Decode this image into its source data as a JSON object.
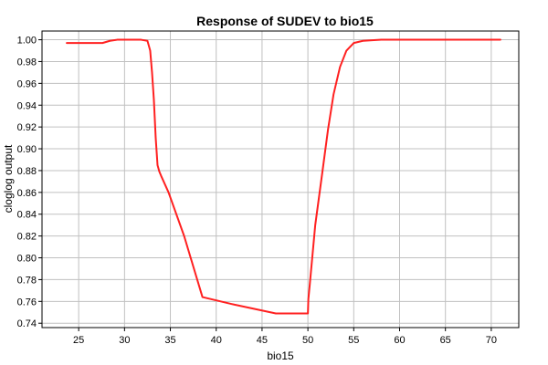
{
  "chart_data": {
    "type": "line",
    "title": "Response of SUDEV to bio15",
    "xlabel": "bio15",
    "ylabel": "cloglog output",
    "xlim": [
      21,
      73
    ],
    "ylim": [
      0.736,
      1.008
    ],
    "xticks": [
      25,
      30,
      35,
      40,
      45,
      50,
      55,
      60,
      65,
      70
    ],
    "yticks": [
      0.74,
      0.76,
      0.78,
      0.8,
      0.82,
      0.84,
      0.86,
      0.88,
      0.9,
      0.92,
      0.94,
      0.96,
      0.98,
      1.0
    ],
    "xtick_labels": [
      "25",
      "30",
      "35",
      "40",
      "45",
      "50",
      "55",
      "60",
      "65",
      "70"
    ],
    "ytick_labels": [
      "0.74",
      "0.76",
      "0.78",
      "0.80",
      "0.82",
      "0.84",
      "0.86",
      "0.88",
      "0.90",
      "0.92",
      "0.94",
      "0.96",
      "0.98",
      "1.00"
    ],
    "grid": true,
    "series": [
      {
        "color": "#ff2020",
        "x": [
          23.7,
          27.6,
          28.4,
          29.2,
          31.8,
          32.5,
          32.8,
          33.0,
          33.2,
          33.4,
          33.6,
          33.8,
          34.0,
          34.8,
          36.5,
          38.5,
          42.0,
          46.5,
          50.0,
          50.05,
          50.2,
          50.8,
          51.6,
          52.2,
          52.8,
          53.5,
          54.2,
          55.0,
          56.0,
          58.0,
          71.0
        ],
        "y": [
          0.997,
          0.997,
          0.999,
          1.0,
          1.0,
          0.999,
          0.99,
          0.97,
          0.945,
          0.91,
          0.885,
          0.879,
          0.875,
          0.86,
          0.82,
          0.764,
          0.757,
          0.749,
          0.749,
          0.762,
          0.775,
          0.83,
          0.88,
          0.918,
          0.95,
          0.975,
          0.99,
          0.997,
          0.999,
          1.0,
          1.0
        ]
      }
    ]
  }
}
